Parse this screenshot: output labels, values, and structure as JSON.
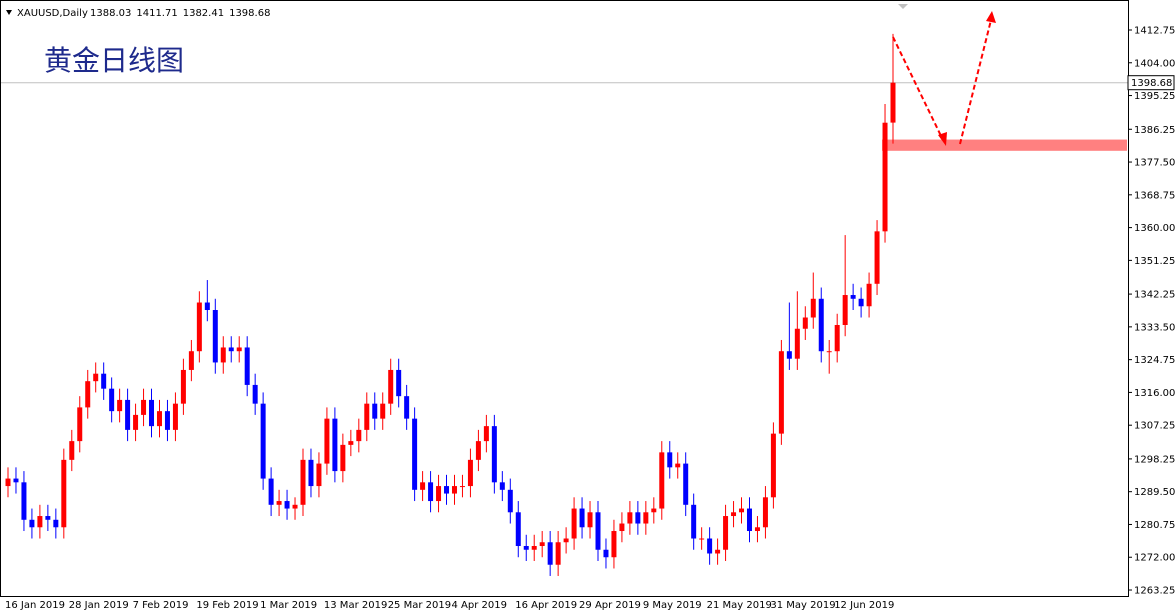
{
  "chart_data": {
    "type": "candlestick",
    "title": "黄金日线图",
    "symbol": "XAUUSD,Daily",
    "header_values": [
      1388.03,
      1411.71,
      1382.41,
      1398.68
    ],
    "current_price": 1398.68,
    "support_zone": [
      1380.5,
      1383.5
    ],
    "up_color": "#ff0000",
    "down_color": "#0000ff",
    "zone_color": "#ff8080",
    "ylim": [
      1261.92,
      1419.69
    ],
    "yticks": [
      1412.75,
      {
        "value": 1404,
        "label": "1404.00"
      },
      1395.25,
      1386.25,
      {
        "value": 1377.5,
        "label": "1377.50"
      },
      1368.75,
      {
        "value": 1360,
        "label": "1360.00"
      },
      1351.25,
      1342.25,
      {
        "value": 1333.5,
        "label": "1333.50"
      },
      1324.75,
      {
        "value": 1316,
        "label": "1316.00"
      },
      1307.25,
      1298.25,
      {
        "value": 1289.5,
        "label": "1289.50"
      },
      1280.75,
      {
        "value": 1272,
        "label": "1272.00"
      },
      1263.25
    ],
    "categories": [
      "16 Jan 2019",
      null,
      null,
      null,
      null,
      null,
      null,
      null,
      "28 Jan 2019",
      null,
      null,
      null,
      null,
      null,
      null,
      null,
      "7 Feb 2019",
      null,
      null,
      null,
      null,
      null,
      null,
      null,
      "19 Feb 2019",
      null,
      null,
      null,
      null,
      null,
      null,
      null,
      "1 Mar 2019",
      null,
      null,
      null,
      null,
      null,
      null,
      null,
      "13 Mar 2019",
      null,
      null,
      null,
      null,
      null,
      null,
      null,
      "25 Mar 2019",
      null,
      null,
      null,
      null,
      null,
      null,
      null,
      "4 Apr 2019",
      null,
      null,
      null,
      null,
      null,
      null,
      null,
      "16 Apr 2019",
      null,
      null,
      null,
      null,
      null,
      null,
      null,
      "29 Apr 2019",
      null,
      null,
      null,
      null,
      null,
      null,
      null,
      "9 May 2019",
      null,
      null,
      null,
      null,
      null,
      null,
      null,
      "21 May 2019",
      null,
      null,
      null,
      null,
      null,
      null,
      null,
      "31 May 2019",
      null,
      null,
      null,
      null,
      null,
      null,
      null,
      "12 Jun 2019",
      null,
      null,
      null,
      null,
      null,
      null,
      null
    ],
    "ohlc": {
      "open": [
        1291,
        1293,
        1292,
        1282,
        1280,
        1283,
        1282,
        1280,
        1298,
        1303,
        1312,
        1319,
        1321,
        1317,
        1311,
        1314,
        1306,
        1310,
        1314,
        1307,
        1311,
        1306,
        1313,
        1322,
        1327,
        1340,
        1338,
        1324,
        1328,
        1327,
        1328,
        1318,
        1313,
        1293,
        1286,
        1287,
        1285,
        1286,
        1298,
        1291,
        1297,
        1309,
        1295,
        1302,
        1303,
        1306,
        1313,
        1309,
        1313,
        1322,
        1315,
        1309,
        1290,
        1292,
        1287,
        1291,
        1289,
        1291,
        1291,
        1298,
        1303,
        1307,
        1292,
        1290,
        1284,
        1275,
        1274,
        1275,
        1276,
        1270,
        1276,
        1277,
        1285,
        1280,
        1284,
        1274,
        1272,
        1279,
        1281,
        1284,
        1281,
        1284,
        1285,
        1300,
        1296,
        1297,
        1286,
        1277,
        1277,
        1273,
        1274,
        1283,
        1284,
        1285,
        1279,
        1280,
        1288,
        1305,
        1327,
        1325,
        1333,
        1336,
        1341,
        1327,
        1327,
        1334,
        1342,
        1341,
        1339,
        1345,
        1359,
        1388.03
      ],
      "high": [
        1296,
        1296,
        1295,
        1285,
        1286,
        1286,
        1285,
        1301,
        1306,
        1315,
        1322,
        1324,
        1324,
        1320,
        1317,
        1317,
        1313,
        1317,
        1317,
        1314,
        1314,
        1316,
        1325,
        1330,
        1343,
        1346,
        1341,
        1331,
        1331,
        1331,
        1331,
        1321,
        1316,
        1296,
        1290,
        1290,
        1288,
        1301,
        1301,
        1300,
        1312,
        1312,
        1305,
        1306,
        1309,
        1316,
        1316,
        1316,
        1325,
        1325,
        1318,
        1312,
        1295,
        1295,
        1294,
        1294,
        1294,
        1294,
        1301,
        1306,
        1310,
        1310,
        1295,
        1293,
        1287,
        1278,
        1278,
        1279,
        1279,
        1279,
        1280,
        1288,
        1288,
        1287,
        1287,
        1277,
        1282,
        1284,
        1287,
        1287,
        1287,
        1288,
        1303,
        1303,
        1300,
        1300,
        1289,
        1280,
        1280,
        1277,
        1286,
        1287,
        1288,
        1288,
        1283,
        1291,
        1308,
        1330,
        1340,
        1343,
        1339,
        1348,
        1344,
        1330,
        1337,
        1358,
        1345,
        1344,
        1348,
        1362,
        1393,
        1411.71
      ],
      "low": [
        1288,
        1289,
        1279,
        1277,
        1277,
        1279,
        1277,
        1277,
        1295,
        1300,
        1309,
        1316,
        1314,
        1308,
        1308,
        1303,
        1303,
        1307,
        1304,
        1304,
        1303,
        1303,
        1310,
        1319,
        1324,
        1335,
        1321,
        1321,
        1324,
        1324,
        1315,
        1310,
        1290,
        1283,
        1283,
        1282,
        1282,
        1283,
        1288,
        1288,
        1294,
        1292,
        1292,
        1299,
        1300,
        1303,
        1306,
        1306,
        1310,
        1312,
        1306,
        1287,
        1287,
        1284,
        1284,
        1286,
        1286,
        1288,
        1288,
        1295,
        1300,
        1289,
        1287,
        1281,
        1272,
        1271,
        1271,
        1272,
        1267,
        1267,
        1273,
        1274,
        1277,
        1277,
        1271,
        1269,
        1269,
        1276,
        1278,
        1278,
        1278,
        1281,
        1282,
        1293,
        1293,
        1283,
        1274,
        1274,
        1270,
        1270,
        1271,
        1280,
        1281,
        1276,
        1276,
        1277,
        1285,
        1302,
        1322,
        1322,
        1330,
        1333,
        1324,
        1321,
        1324,
        1331,
        1338,
        1336,
        1336,
        1342,
        1356,
        1382.41
      ],
      "close": [
        1293,
        1292,
        1282,
        1280,
        1283,
        1282,
        1280,
        1298,
        1303,
        1312,
        1319,
        1321,
        1317,
        1311,
        1314,
        1306,
        1310,
        1314,
        1307,
        1311,
        1306,
        1313,
        1322,
        1327,
        1340,
        1338,
        1324,
        1328,
        1327,
        1328,
        1318,
        1313,
        1293,
        1286,
        1287,
        1285,
        1286,
        1298,
        1291,
        1297,
        1309,
        1295,
        1302,
        1303,
        1306,
        1313,
        1309,
        1313,
        1322,
        1315,
        1309,
        1290,
        1292,
        1287,
        1291,
        1289,
        1291,
        1291,
        1298,
        1303,
        1307,
        1292,
        1290,
        1284,
        1275,
        1274,
        1275,
        1276,
        1270,
        1276,
        1277,
        1285,
        1280,
        1284,
        1274,
        1272,
        1279,
        1281,
        1284,
        1281,
        1284,
        1285,
        1300,
        1296,
        1297,
        1286,
        1277,
        1277,
        1273,
        1274,
        1283,
        1284,
        1285,
        1279,
        1280,
        1288,
        1305,
        1327,
        1325,
        1333,
        1336,
        1341,
        1327,
        1327,
        1334,
        1342,
        1341,
        1339,
        1345,
        1359,
        1388,
        1398.68
      ]
    }
  }
}
